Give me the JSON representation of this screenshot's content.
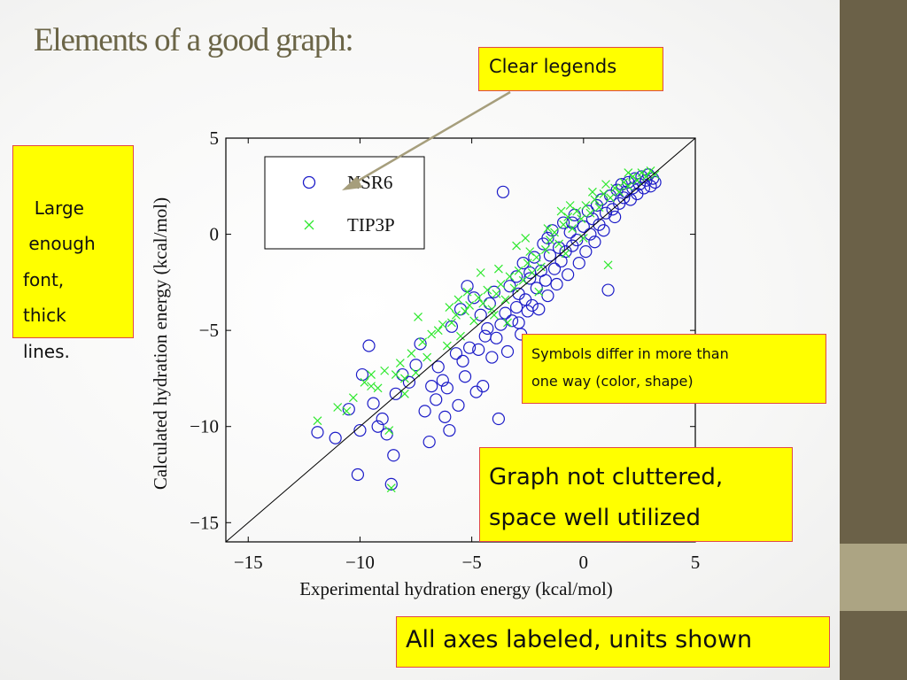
{
  "slide": {
    "title": "Elements of a good graph:"
  },
  "callouts": {
    "clear_legends": "Clear legends",
    "large_font": "Large\n enough\nfont,\nthick\nlines.",
    "symbols_differ_line1": "Symbols differ in more than",
    "symbols_differ_line2": "one way (color, shape)",
    "not_cluttered_line1": "Graph not cluttered,",
    "not_cluttered_line2": "space well utilized",
    "axes_labeled": "All axes labeled, units shown"
  },
  "colors": {
    "series_nsr6": "#1c1cc8",
    "series_tip3p": "#2ee82e",
    "callout_fill": "#ffff00",
    "callout_border": "#e04848",
    "arrow": "#a69e7c",
    "title": "#6b6547",
    "sidebar_dark": "#6b6148",
    "sidebar_light": "#aca483"
  },
  "chart_data": {
    "type": "scatter",
    "xlabel": "Experimental hydration energy (kcal/mol)",
    "ylabel": "Calculated  hydration energy (kcal/mol)",
    "xlim": [
      -16,
      5
    ],
    "ylim": [
      -16,
      5
    ],
    "xticks": [
      -15,
      -10,
      -5,
      0,
      5
    ],
    "yticks": [
      -15,
      -10,
      -5,
      0,
      5
    ],
    "xtick_labels": [
      "−15",
      "−10",
      "−5",
      "0",
      "5"
    ],
    "ytick_labels": [
      "−15",
      "−10",
      "−5",
      "0",
      "5"
    ],
    "reference_line": "y = x",
    "grid": false,
    "legend_position": "top-left",
    "series": [
      {
        "name": "NSR6",
        "marker": "circle",
        "points": [
          [
            -11.9,
            -10.3
          ],
          [
            -11.1,
            -10.6
          ],
          [
            -10.5,
            -9.1
          ],
          [
            -10.1,
            -12.5
          ],
          [
            -10.0,
            -10.2
          ],
          [
            -9.9,
            -7.3
          ],
          [
            -9.6,
            -5.8
          ],
          [
            -9.4,
            -8.8
          ],
          [
            -9.2,
            -10.0
          ],
          [
            -9.0,
            -9.6
          ],
          [
            -8.8,
            -10.4
          ],
          [
            -8.6,
            -13.0
          ],
          [
            -8.5,
            -11.5
          ],
          [
            -8.4,
            -8.3
          ],
          [
            -8.1,
            -7.3
          ],
          [
            -7.8,
            -7.7
          ],
          [
            -7.5,
            -6.8
          ],
          [
            -7.3,
            -5.7
          ],
          [
            -7.1,
            -9.2
          ],
          [
            -6.9,
            -10.8
          ],
          [
            -6.8,
            -7.9
          ],
          [
            -6.6,
            -8.6
          ],
          [
            -6.3,
            -7.6
          ],
          [
            -6.2,
            -9.5
          ],
          [
            -6.1,
            -8.0
          ],
          [
            -6.0,
            -10.2
          ],
          [
            -5.9,
            -4.8
          ],
          [
            -5.7,
            -6.2
          ],
          [
            -5.6,
            -8.9
          ],
          [
            -5.5,
            -3.9
          ],
          [
            -5.4,
            -6.6
          ],
          [
            -5.3,
            -7.4
          ],
          [
            -5.2,
            -2.7
          ],
          [
            -5.1,
            -5.9
          ],
          [
            -4.9,
            -3.3
          ],
          [
            -4.8,
            -8.2
          ],
          [
            -4.7,
            -6.0
          ],
          [
            -4.6,
            -4.2
          ],
          [
            -4.5,
            -7.9
          ],
          [
            -4.4,
            -5.3
          ],
          [
            -4.3,
            -4.9
          ],
          [
            -4.2,
            -3.6
          ],
          [
            -4.1,
            -6.4
          ],
          [
            -3.9,
            -5.4
          ],
          [
            -3.8,
            -9.6
          ],
          [
            -3.7,
            -4.7
          ],
          [
            -3.6,
            2.2
          ],
          [
            -3.5,
            -4.1
          ],
          [
            -3.4,
            -6.1
          ],
          [
            -3.3,
            -2.7
          ],
          [
            -3.2,
            -4.5
          ],
          [
            -3.0,
            -3.8
          ],
          [
            -2.9,
            -3.1
          ],
          [
            -2.8,
            -5.2
          ],
          [
            -2.7,
            -1.5
          ],
          [
            -2.6,
            -3.4
          ],
          [
            -2.5,
            -4.0
          ],
          [
            -2.4,
            -2.3
          ],
          [
            -2.3,
            -3.7
          ],
          [
            -2.2,
            -1.2
          ],
          [
            -2.1,
            -2.8
          ],
          [
            -2.0,
            -3.9
          ],
          [
            -1.9,
            -1.9
          ],
          [
            -1.8,
            -0.5
          ],
          [
            -1.7,
            -2.4
          ],
          [
            -1.6,
            -3.2
          ],
          [
            -1.5,
            -1.1
          ],
          [
            -1.4,
            0.2
          ],
          [
            -1.3,
            -1.8
          ],
          [
            -1.2,
            -2.6
          ],
          [
            -1.1,
            -0.7
          ],
          [
            -1.0,
            -1.4
          ],
          [
            -0.9,
            0.6
          ],
          [
            -0.8,
            -0.9
          ],
          [
            -0.7,
            -2.1
          ],
          [
            -0.6,
            0.1
          ],
          [
            -0.5,
            -0.6
          ],
          [
            -0.4,
            1.0
          ],
          [
            -0.3,
            -0.3
          ],
          [
            -0.2,
            -1.5
          ],
          [
            0.0,
            0.4
          ],
          [
            0.1,
            -0.9
          ],
          [
            0.2,
            1.2
          ],
          [
            0.3,
            0.0
          ],
          [
            0.4,
            0.8
          ],
          [
            0.5,
            -0.4
          ],
          [
            0.6,
            1.5
          ],
          [
            0.7,
            0.5
          ],
          [
            0.8,
            1.8
          ],
          [
            0.9,
            0.2
          ],
          [
            1.0,
            1.1
          ],
          [
            1.1,
            -2.9
          ],
          [
            1.2,
            2.0
          ],
          [
            1.3,
            1.3
          ],
          [
            1.4,
            0.9
          ],
          [
            1.5,
            2.3
          ],
          [
            1.6,
            1.6
          ],
          [
            1.7,
            2.6
          ],
          [
            1.8,
            1.9
          ],
          [
            1.9,
            2.2
          ],
          [
            2.0,
            2.7
          ],
          [
            2.1,
            1.8
          ],
          [
            2.2,
            2.4
          ],
          [
            2.3,
            2.9
          ],
          [
            2.4,
            2.1
          ],
          [
            2.5,
            2.6
          ],
          [
            2.6,
            3.0
          ],
          [
            2.7,
            2.4
          ],
          [
            2.8,
            2.8
          ],
          [
            2.9,
            3.1
          ],
          [
            3.0,
            2.5
          ],
          [
            3.1,
            2.9
          ],
          [
            3.2,
            2.7
          ],
          [
            -2.4,
            -2.0
          ],
          [
            -3.0,
            -2.2
          ],
          [
            -4.0,
            -3.0
          ],
          [
            -1.6,
            -0.2
          ],
          [
            -0.5,
            0.6
          ],
          [
            -2.9,
            -4.6
          ],
          [
            -6.5,
            -6.9
          ]
        ]
      },
      {
        "name": "TIP3P",
        "marker": "x",
        "points": [
          [
            -11.9,
            -9.7
          ],
          [
            -11.0,
            -9.0
          ],
          [
            -10.3,
            -8.5
          ],
          [
            -9.8,
            -7.7
          ],
          [
            -9.5,
            -7.3
          ],
          [
            -9.2,
            -8.0
          ],
          [
            -8.9,
            -7.1
          ],
          [
            -8.6,
            -13.2
          ],
          [
            -8.7,
            -10.2
          ],
          [
            -8.4,
            -7.3
          ],
          [
            -8.2,
            -6.7
          ],
          [
            -8.0,
            -8.3
          ],
          [
            -7.7,
            -6.2
          ],
          [
            -7.5,
            -7.2
          ],
          [
            -7.2,
            -5.6
          ],
          [
            -7.0,
            -6.4
          ],
          [
            -6.8,
            -5.2
          ],
          [
            -6.5,
            -5.0
          ],
          [
            -6.3,
            -4.7
          ],
          [
            -6.1,
            -5.8
          ],
          [
            -5.9,
            -4.6
          ],
          [
            -5.7,
            -4.2
          ],
          [
            -5.5,
            -5.3
          ],
          [
            -5.3,
            -4.0
          ],
          [
            -5.1,
            -3.7
          ],
          [
            -4.9,
            -4.5
          ],
          [
            -4.7,
            -3.3
          ],
          [
            -4.5,
            -3.6
          ],
          [
            -4.3,
            -2.9
          ],
          [
            -4.1,
            -3.9
          ],
          [
            -3.9,
            -3.1
          ],
          [
            -3.7,
            -2.6
          ],
          [
            -3.5,
            -3.4
          ],
          [
            -3.3,
            -2.2
          ],
          [
            -3.1,
            -2.8
          ],
          [
            -2.9,
            -1.9
          ],
          [
            -2.7,
            -2.4
          ],
          [
            -2.5,
            -1.5
          ],
          [
            -2.3,
            -2.0
          ],
          [
            -2.1,
            -1.2
          ],
          [
            -1.9,
            -1.7
          ],
          [
            -1.7,
            -0.8
          ],
          [
            -1.5,
            -0.3
          ],
          [
            -1.3,
            0.1
          ],
          [
            -1.1,
            -0.5
          ],
          [
            -0.9,
            0.5
          ],
          [
            -0.7,
            0.9
          ],
          [
            -0.5,
            0.3
          ],
          [
            -0.3,
            1.2
          ],
          [
            -0.1,
            0.8
          ],
          [
            0.1,
            1.5
          ],
          [
            0.3,
            1.1
          ],
          [
            0.5,
            1.8
          ],
          [
            0.7,
            1.4
          ],
          [
            0.9,
            2.1
          ],
          [
            1.1,
            -1.6
          ],
          [
            1.2,
            1.9
          ],
          [
            1.4,
            2.4
          ],
          [
            1.6,
            2.2
          ],
          [
            1.8,
            2.7
          ],
          [
            2.0,
            2.5
          ],
          [
            2.2,
            3.0
          ],
          [
            2.4,
            2.8
          ],
          [
            2.6,
            3.2
          ],
          [
            2.8,
            3.0
          ],
          [
            3.0,
            3.3
          ],
          [
            3.2,
            3.1
          ],
          [
            -4.6,
            -2.0
          ],
          [
            -3.8,
            -1.8
          ],
          [
            -2.4,
            -0.9
          ],
          [
            -1.6,
            0.3
          ],
          [
            -0.6,
            1.5
          ],
          [
            0.4,
            2.2
          ],
          [
            -5.2,
            -3.0
          ],
          [
            -6.0,
            -3.8
          ],
          [
            -7.4,
            -4.3
          ],
          [
            -3.4,
            -4.6
          ],
          [
            -2.0,
            -3.0
          ],
          [
            -0.8,
            -1.0
          ],
          [
            0.0,
            -0.2
          ],
          [
            -9.5,
            -7.9
          ],
          [
            -10.6,
            -9.2
          ],
          [
            -8.0,
            -7.5
          ],
          [
            -4.0,
            -4.2
          ],
          [
            -1.0,
            1.2
          ],
          [
            1.0,
            2.6
          ],
          [
            2.0,
            3.2
          ],
          [
            -3.0,
            -0.6
          ],
          [
            -2.6,
            -0.2
          ],
          [
            -5.6,
            -3.4
          ]
        ]
      }
    ]
  }
}
